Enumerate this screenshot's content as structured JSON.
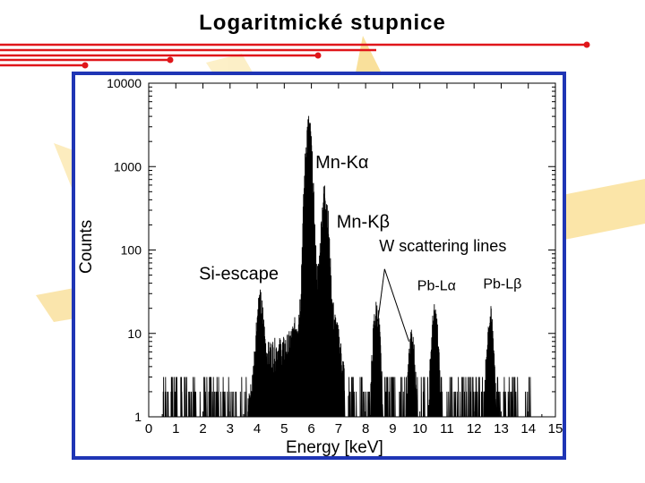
{
  "slide": {
    "title": "Logaritmické stupnice"
  },
  "colors": {
    "frame": "#1f35b5",
    "red_lines": "#e0161a",
    "glow": "#f5c84a"
  },
  "chart_data": {
    "type": "line",
    "xlabel": "Energy [keV]",
    "ylabel": "Counts",
    "xlim": [
      0,
      15
    ],
    "ylim": [
      1,
      10000
    ],
    "yscale": "log",
    "x_ticks": [
      "0",
      "1",
      "2",
      "3",
      "4",
      "5",
      "6",
      "7",
      "8",
      "9",
      "10",
      "11",
      "12",
      "13",
      "14",
      "15"
    ],
    "y_ticks": [
      "1",
      "10",
      "100",
      "1000",
      "10000"
    ],
    "annotations": [
      {
        "id": "mn-ka",
        "text": "Mn-Kα",
        "x": 6.15,
        "y": 3000
      },
      {
        "id": "mn-kb",
        "text": "Mn-Kβ",
        "x": 6.6,
        "y": 450
      },
      {
        "id": "w-scatter",
        "text": "W scattering lines",
        "x": 8.5,
        "y": 22
      },
      {
        "id": "si-escape",
        "text": "Si-escape",
        "x": 4.1,
        "y": 20
      },
      {
        "id": "pb-la",
        "text": "Pb-Lα",
        "x": 10.5,
        "y": 20
      },
      {
        "id": "pb-lb",
        "text": "Pb-Lβ",
        "x": 12.6,
        "y": 20
      }
    ],
    "peaks": [
      {
        "x": 4.1,
        "counts": 20
      },
      {
        "x": 5.9,
        "counts": 3000
      },
      {
        "x": 6.5,
        "counts": 450
      },
      {
        "x": 8.4,
        "counts": 18
      },
      {
        "x": 9.7,
        "counts": 8
      },
      {
        "x": 10.55,
        "counts": 16
      },
      {
        "x": 12.6,
        "counts": 15
      }
    ]
  }
}
